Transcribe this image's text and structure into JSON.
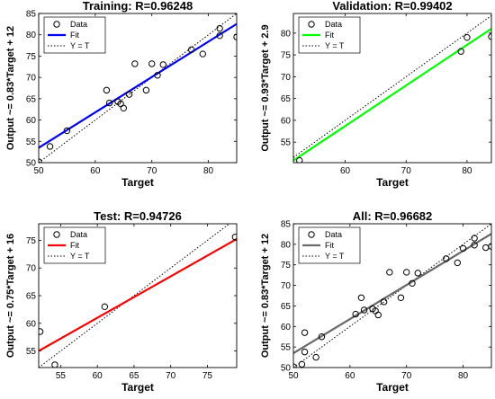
{
  "chart_data": [
    {
      "type": "scatter",
      "title": "Training: R=0.96248",
      "xlabel": "Target",
      "ylabel": "Output ~= 0.83*Target + 12",
      "xlim": [
        50,
        85
      ],
      "ylim": [
        50,
        85
      ],
      "xticks": [
        50,
        60,
        70,
        80
      ],
      "yticks": [
        50,
        55,
        60,
        65,
        70,
        75,
        80,
        85
      ],
      "legend": {
        "placement": "top-left",
        "entries": [
          "Data",
          "Fit",
          "Y = T"
        ]
      },
      "fit": {
        "slope": 0.83,
        "intercept": 12,
        "color": "#0000ff"
      },
      "points": [
        {
          "x": 50,
          "y": 50.2
        },
        {
          "x": 52,
          "y": 53.8
        },
        {
          "x": 55,
          "y": 57.5
        },
        {
          "x": 62,
          "y": 67
        },
        {
          "x": 62.5,
          "y": 64
        },
        {
          "x": 64,
          "y": 64.3
        },
        {
          "x": 64.5,
          "y": 63.8
        },
        {
          "x": 65,
          "y": 62.8
        },
        {
          "x": 66,
          "y": 66
        },
        {
          "x": 67,
          "y": 73.2
        },
        {
          "x": 69,
          "y": 67
        },
        {
          "x": 70,
          "y": 73.2
        },
        {
          "x": 71,
          "y": 70.5
        },
        {
          "x": 72,
          "y": 73
        },
        {
          "x": 77,
          "y": 76.5
        },
        {
          "x": 79,
          "y": 75.5
        },
        {
          "x": 82,
          "y": 81.5
        },
        {
          "x": 82,
          "y": 79.8
        },
        {
          "x": 85,
          "y": 79.5
        }
      ]
    },
    {
      "type": "scatter",
      "title": "Validation: R=0.99402",
      "xlabel": "Target",
      "ylabel": "Output ~= 0.93*Target + 2.9",
      "xlim": [
        51.5,
        84
      ],
      "ylim": [
        50.3,
        84.5
      ],
      "xticks": [
        60,
        70,
        80
      ],
      "yticks": [
        55,
        60,
        65,
        70,
        75,
        80
      ],
      "legend": {
        "placement": "top-left",
        "entries": [
          "Data",
          "Fit",
          "Y = T"
        ]
      },
      "fit": {
        "slope": 0.93,
        "intercept": 2.9,
        "color": "#00ff00"
      },
      "points": [
        {
          "x": 52.5,
          "y": 50.8
        },
        {
          "x": 79,
          "y": 75.8
        },
        {
          "x": 80,
          "y": 79
        },
        {
          "x": 84,
          "y": 79.2
        }
      ]
    },
    {
      "type": "scatter",
      "title": "Test: R=0.94726",
      "xlabel": "Target",
      "ylabel": "Output ~= 0.75*Target + 16",
      "xlim": [
        52,
        79
      ],
      "ylim": [
        52,
        78
      ],
      "xticks": [
        55,
        60,
        65,
        70,
        75
      ],
      "yticks": [
        55,
        60,
        65,
        70,
        75
      ],
      "legend": {
        "placement": "top-left",
        "entries": [
          "Data",
          "Fit",
          "Y = T"
        ]
      },
      "fit": {
        "slope": 0.75,
        "intercept": 16,
        "color": "#ff0000"
      },
      "points": [
        {
          "x": 52.2,
          "y": 58.5
        },
        {
          "x": 54.2,
          "y": 52.5
        },
        {
          "x": 61,
          "y": 63
        },
        {
          "x": 78.8,
          "y": 75.6
        }
      ]
    },
    {
      "type": "scatter",
      "title": "All: R=0.96682",
      "xlabel": "Target",
      "ylabel": "Output ~= 0.83*Target + 12",
      "xlim": [
        50,
        85
      ],
      "ylim": [
        50,
        85
      ],
      "xticks": [
        50,
        60,
        70,
        80
      ],
      "yticks": [
        50,
        55,
        60,
        65,
        70,
        75,
        80,
        85
      ],
      "legend": {
        "placement": "top-left",
        "entries": [
          "Data",
          "Fit",
          "Y = T"
        ]
      },
      "fit": {
        "slope": 0.83,
        "intercept": 12,
        "color": "#6a6a6a"
      },
      "points": [
        {
          "x": 50,
          "y": 50.2
        },
        {
          "x": 51.5,
          "y": 50.8
        },
        {
          "x": 52,
          "y": 53.8
        },
        {
          "x": 52,
          "y": 58.5
        },
        {
          "x": 54,
          "y": 52.5
        },
        {
          "x": 55,
          "y": 57.5
        },
        {
          "x": 61,
          "y": 63
        },
        {
          "x": 62,
          "y": 67
        },
        {
          "x": 62.5,
          "y": 64
        },
        {
          "x": 64,
          "y": 64.3
        },
        {
          "x": 64.5,
          "y": 63.8
        },
        {
          "x": 65,
          "y": 62.8
        },
        {
          "x": 66,
          "y": 66
        },
        {
          "x": 67,
          "y": 73.2
        },
        {
          "x": 69,
          "y": 67
        },
        {
          "x": 70,
          "y": 73.2
        },
        {
          "x": 71,
          "y": 70.5
        },
        {
          "x": 72,
          "y": 73
        },
        {
          "x": 77,
          "y": 76.5
        },
        {
          "x": 79,
          "y": 75.5
        },
        {
          "x": 80,
          "y": 79
        },
        {
          "x": 82,
          "y": 81.5
        },
        {
          "x": 82,
          "y": 79.8
        },
        {
          "x": 84,
          "y": 79.2
        },
        {
          "x": 85,
          "y": 79.5
        }
      ]
    }
  ]
}
